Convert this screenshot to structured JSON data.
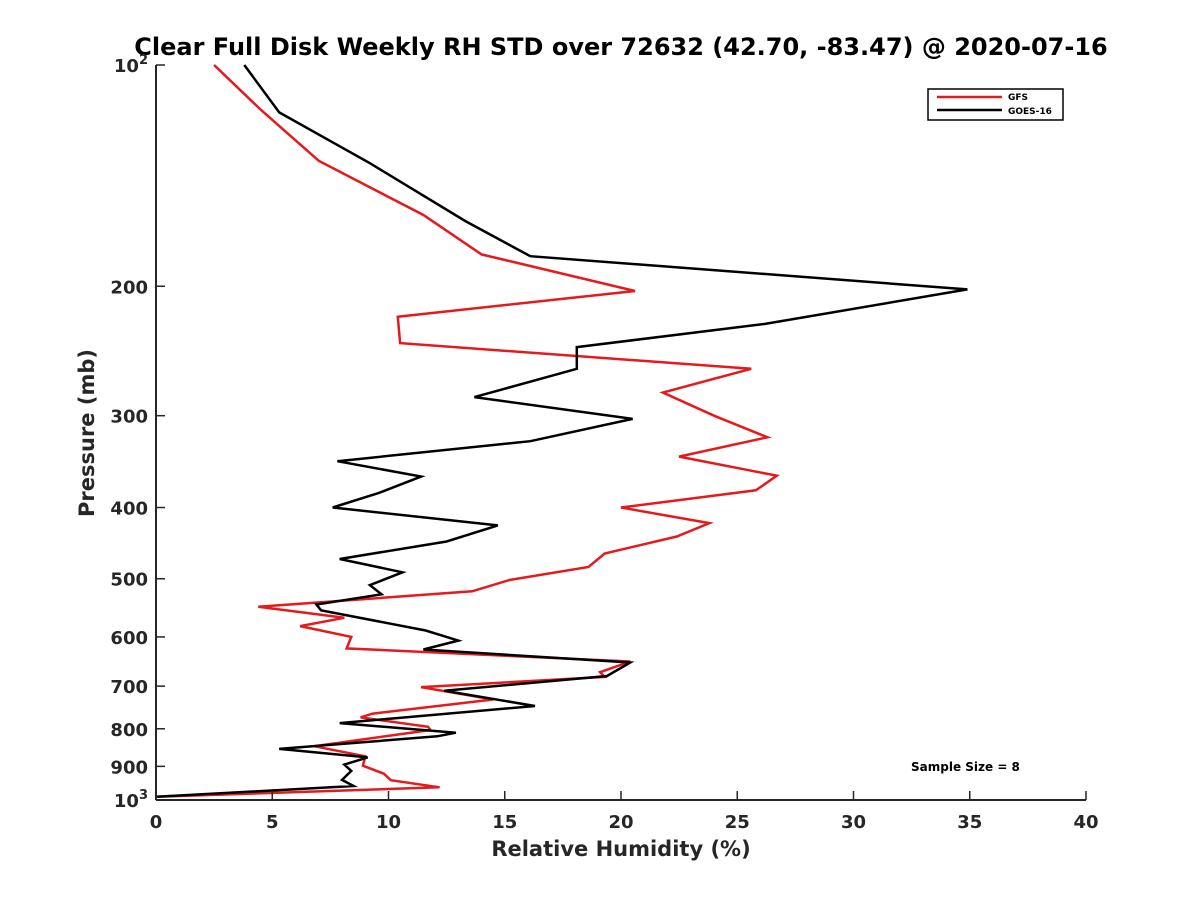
{
  "chart_data": {
    "type": "line",
    "title": "Clear Full Disk Weekly RH STD over 72632 (42.70, -83.47) @ 2020-07-16",
    "xlabel": "Relative Humidity (%)",
    "ylabel": "Pressure (mb)",
    "xlim": [
      0,
      40
    ],
    "ylim": [
      100,
      1000
    ],
    "y_scale": "log",
    "y_reversed": true,
    "grid": false,
    "legend_position": "top-right",
    "x_ticks": [
      "0",
      "5",
      "10",
      "15",
      "20",
      "25",
      "30",
      "35",
      "40"
    ],
    "y_ticks": [
      {
        "value": 100,
        "base": "10",
        "exp": "2"
      },
      {
        "value": 200,
        "base": "200",
        "exp": ""
      },
      {
        "value": 300,
        "base": "300",
        "exp": ""
      },
      {
        "value": 400,
        "base": "400",
        "exp": ""
      },
      {
        "value": 500,
        "base": "500",
        "exp": ""
      },
      {
        "value": 600,
        "base": "600",
        "exp": ""
      },
      {
        "value": 700,
        "base": "700",
        "exp": ""
      },
      {
        "value": 800,
        "base": "800",
        "exp": ""
      },
      {
        "value": 900,
        "base": "900",
        "exp": ""
      },
      {
        "value": 1000,
        "base": "10",
        "exp": "3"
      }
    ],
    "annotation": "Sample Size = 8",
    "series": [
      {
        "name": "GFS",
        "color": "#e41a1c",
        "points": [
          [
            2.5,
            100
          ],
          [
            4.5,
            115
          ],
          [
            7.0,
            135
          ],
          [
            11.5,
            160
          ],
          [
            14.0,
            181
          ],
          [
            20.6,
            203
          ],
          [
            10.4,
            220
          ],
          [
            10.5,
            239
          ],
          [
            25.6,
            259
          ],
          [
            21.8,
            279
          ],
          [
            24.0,
            300
          ],
          [
            26.3,
            321
          ],
          [
            22.5,
            341
          ],
          [
            26.7,
            362
          ],
          [
            25.8,
            379
          ],
          [
            20.0,
            400
          ],
          [
            23.8,
            420
          ],
          [
            22.4,
            438
          ],
          [
            19.3,
            462
          ],
          [
            18.6,
            482
          ],
          [
            15.2,
            502
          ],
          [
            13.6,
            520
          ],
          [
            4.4,
            546
          ],
          [
            8.1,
            565
          ],
          [
            6.2,
            580
          ],
          [
            8.4,
            600
          ],
          [
            8.2,
            622
          ],
          [
            20.4,
            648
          ],
          [
            19.1,
            670
          ],
          [
            19.3,
            680
          ],
          [
            11.4,
            702
          ],
          [
            14.5,
            730
          ],
          [
            9.3,
            763
          ],
          [
            8.8,
            772
          ],
          [
            11.7,
            795
          ],
          [
            11.8,
            803
          ],
          [
            6.8,
            845
          ],
          [
            9.0,
            872
          ],
          [
            8.9,
            898
          ],
          [
            9.8,
            921
          ],
          [
            10.1,
            940
          ],
          [
            12.2,
            961
          ],
          [
            0.0,
            990
          ]
        ]
      },
      {
        "name": "GOES-16",
        "color": "#000000",
        "points": [
          [
            3.8,
            100
          ],
          [
            5.3,
            116
          ],
          [
            9.2,
            136
          ],
          [
            13.3,
            163
          ],
          [
            16.1,
            182
          ],
          [
            34.9,
            202
          ],
          [
            26.2,
            225
          ],
          [
            18.1,
            242
          ],
          [
            18.1,
            259
          ],
          [
            13.7,
            283
          ],
          [
            20.5,
            303
          ],
          [
            16.1,
            325
          ],
          [
            7.8,
            346
          ],
          [
            11.4,
            363
          ],
          [
            9.6,
            382
          ],
          [
            7.6,
            400
          ],
          [
            14.7,
            423
          ],
          [
            12.5,
            445
          ],
          [
            7.9,
            470
          ],
          [
            10.6,
            490
          ],
          [
            9.2,
            510
          ],
          [
            9.7,
            525
          ],
          [
            6.9,
            542
          ],
          [
            7.1,
            552
          ],
          [
            11.6,
            588
          ],
          [
            13.0,
            607
          ],
          [
            11.5,
            624
          ],
          [
            20.4,
            650
          ],
          [
            19.4,
            678
          ],
          [
            12.4,
            710
          ],
          [
            16.3,
            745
          ],
          [
            7.9,
            786
          ],
          [
            12.9,
            810
          ],
          [
            12.1,
            819
          ],
          [
            5.3,
            852
          ],
          [
            9.1,
            875
          ],
          [
            8.1,
            895
          ],
          [
            8.4,
            913
          ],
          [
            8.0,
            939
          ],
          [
            8.5,
            957
          ],
          [
            0.0,
            990
          ]
        ]
      }
    ]
  }
}
